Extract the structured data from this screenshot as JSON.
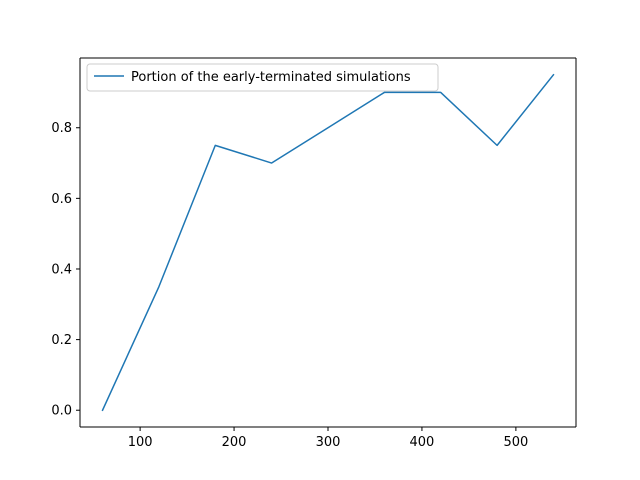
{
  "chart_data": {
    "type": "line",
    "title": "",
    "xlabel": "",
    "ylabel": "",
    "x": [
      60,
      120,
      180,
      240,
      300,
      360,
      420,
      480,
      540
    ],
    "series": [
      {
        "name": "Portion of the early-terminated simulations",
        "values": [
          0.0,
          0.35,
          0.75,
          0.7,
          0.8,
          0.9,
          0.9,
          0.75,
          0.95
        ],
        "color": "#1f77b4"
      }
    ],
    "xlim": [
      36,
      564
    ],
    "ylim": [
      -0.0475,
      0.9975
    ],
    "x_ticks": [
      100,
      200,
      300,
      400,
      500
    ],
    "y_ticks": [
      0.0,
      0.2,
      0.4,
      0.6,
      0.8
    ],
    "x_tick_labels": [
      "100",
      "200",
      "300",
      "400",
      "500"
    ],
    "y_tick_labels": [
      "0.0",
      "0.2",
      "0.4",
      "0.6",
      "0.8"
    ],
    "grid": false,
    "legend": "top-left"
  }
}
